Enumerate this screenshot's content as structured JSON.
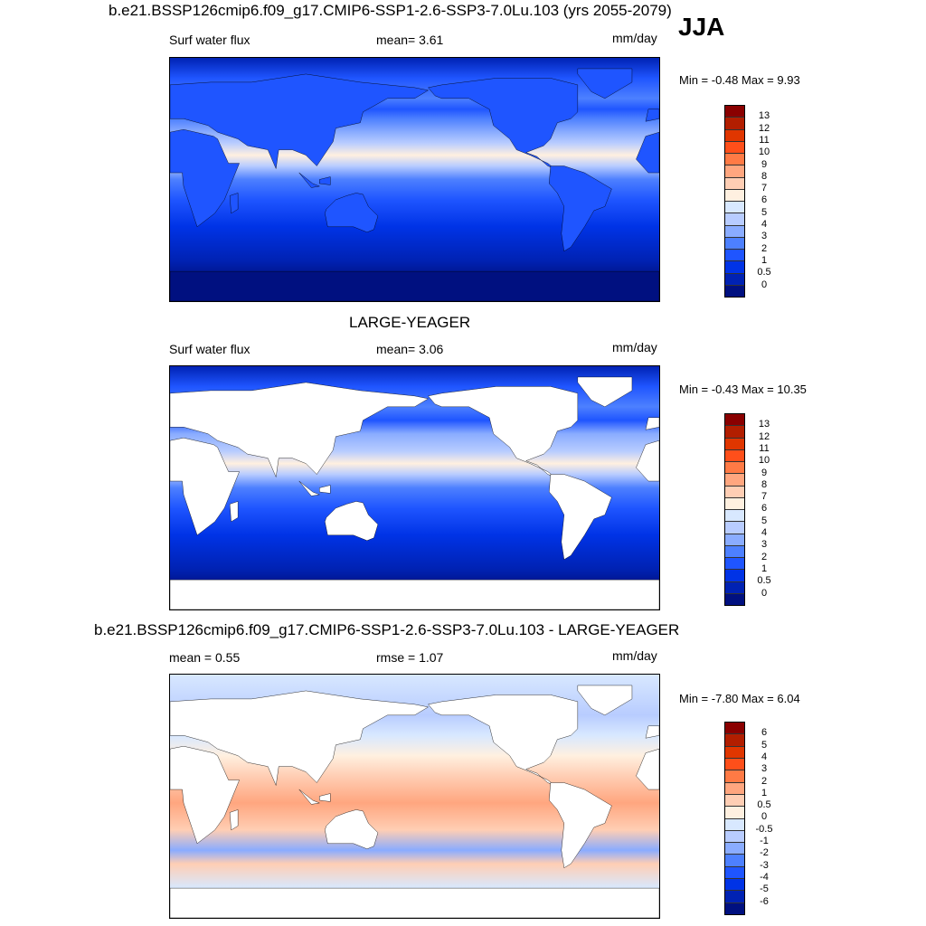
{
  "season": "JJA",
  "units": "mm/day",
  "panels": [
    {
      "title": "b.e21.BSSP126cmip6.f09_g17.CMIP6-SSP1-2.6-SSP3-7.0Lu.103 (yrs 2055-2079)",
      "left_label": "Surf water flux",
      "mean": "mean=   3.61",
      "units": "mm/day",
      "minmax": "Min =  -0.48 Max =   9.93"
    },
    {
      "title": "LARGE-YEAGER",
      "left_label": "Surf water flux",
      "mean": "mean=   3.06",
      "units": "mm/day",
      "minmax": "Min =  -0.43 Max =  10.35"
    },
    {
      "title": "b.e21.BSSP126cmip6.f09_g17.CMIP6-SSP1-2.6-SSP3-7.0Lu.103 - LARGE-YEAGER",
      "left_label": "mean =    0.55",
      "mean": "rmse =   1.07",
      "units": "mm/day",
      "minmax": "Min =  -7.80 Max =   6.04"
    }
  ],
  "colorbar_colors": [
    "#8a0000",
    "#b21e00",
    "#e03600",
    "#ff4f1a",
    "#ff7a45",
    "#ffa67f",
    "#ffceb4",
    "#fff0e0",
    "#d8e8ff",
    "#b8ccff",
    "#8aacff",
    "#4d80ff",
    "#1f55ff",
    "#0033e6",
    "#0022b3",
    "#001080"
  ],
  "colorbar_labels_abs": [
    "13",
    "12",
    "11",
    "10",
    "9",
    "8",
    "7",
    "6",
    "5",
    "4",
    "3",
    "2",
    "1",
    "0.5",
    "0"
  ],
  "colorbar_labels_diff": [
    "6",
    "5",
    "4",
    "3",
    "2",
    "1",
    "0.5",
    "0",
    "-0.5",
    "-1",
    "-2",
    "-3",
    "-4",
    "-5",
    "-6"
  ]
}
